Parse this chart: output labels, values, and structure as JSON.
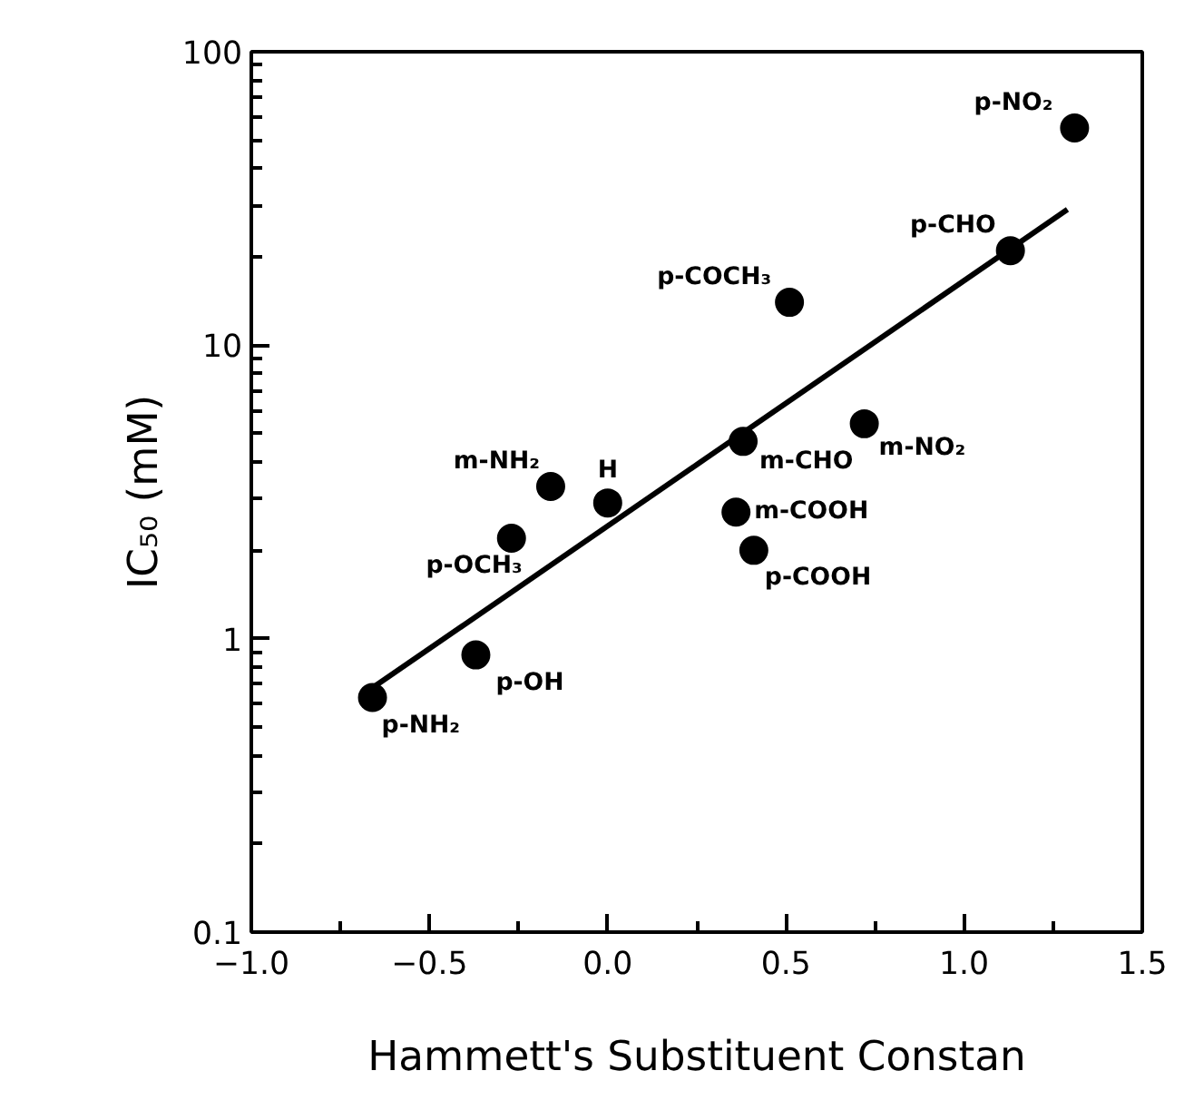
{
  "chart_data": {
    "type": "scatter",
    "xlabel": "Hammett's Substituent Constan",
    "ylabel": "IC₅₀ (mM)",
    "log": "y",
    "grid": false,
    "xlim": [
      -1.0,
      1.5
    ],
    "ylim": [
      0.1,
      100
    ],
    "xticks": [
      {
        "value": -1.0,
        "label": "−1.0"
      },
      {
        "value": -0.75,
        "label": null
      },
      {
        "value": -0.5,
        "label": "−0.5"
      },
      {
        "value": -0.25,
        "label": null
      },
      {
        "value": 0.0,
        "label": "0.0"
      },
      {
        "value": 0.25,
        "label": null
      },
      {
        "value": 0.5,
        "label": "0.5"
      },
      {
        "value": 0.75,
        "label": null
      },
      {
        "value": 1.0,
        "label": "1.0"
      },
      {
        "value": 1.25,
        "label": null
      },
      {
        "value": 1.5,
        "label": "1.5"
      }
    ],
    "yticks": [
      0.1,
      {
        "value": 0.2,
        "label": null
      },
      {
        "value": 0.3,
        "label": null
      },
      {
        "value": 0.4,
        "label": null
      },
      {
        "value": 0.5,
        "label": null
      },
      {
        "value": 0.6,
        "label": null
      },
      {
        "value": 0.7,
        "label": null
      },
      {
        "value": 0.8,
        "label": null
      },
      {
        "value": 0.9,
        "label": null
      },
      1,
      {
        "value": 2,
        "label": null
      },
      {
        "value": 3,
        "label": null
      },
      {
        "value": 4,
        "label": null
      },
      {
        "value": 5,
        "label": null
      },
      {
        "value": 6,
        "label": null
      },
      {
        "value": 7,
        "label": null
      },
      {
        "value": 8,
        "label": null
      },
      {
        "value": 9,
        "label": null
      },
      10,
      {
        "value": 20,
        "label": null
      },
      {
        "value": 30,
        "label": null
      },
      {
        "value": 40,
        "label": null
      },
      {
        "value": 50,
        "label": null
      },
      {
        "value": 60,
        "label": null
      },
      {
        "value": 70,
        "label": null
      },
      {
        "value": 80,
        "label": null
      },
      {
        "value": 90,
        "label": null
      },
      100
    ],
    "series": [
      {
        "marker": "circle",
        "color": "#000000",
        "x": [
          -0.66,
          -0.37,
          -0.27,
          -0.16,
          0.0,
          0.38,
          0.36,
          0.41,
          0.72,
          0.51,
          1.13,
          1.31
        ],
        "values": [
          0.63,
          0.88,
          2.2,
          3.3,
          2.9,
          4.7,
          2.7,
          2.0,
          5.4,
          14,
          21,
          55
        ]
      },
      {
        "type": "line",
        "color": "#000000",
        "x": [
          -0.66,
          1.29
        ],
        "values": [
          0.68,
          29
        ]
      }
    ],
    "annotations": [
      {
        "text": "p-NH₂",
        "x": -0.66,
        "y": 0.63
      },
      {
        "text": "p-OH",
        "x": -0.37,
        "y": 0.88
      },
      {
        "text": "p-OCH₃",
        "x": -0.27,
        "y": 2.2
      },
      {
        "text": "m-NH₂",
        "x": -0.16,
        "y": 3.3
      },
      {
        "text": "H",
        "x": 0.0,
        "y": 2.9
      },
      {
        "text": "m-CHO",
        "x": 0.38,
        "y": 4.7
      },
      {
        "text": "m-COOH",
        "x": 0.36,
        "y": 2.7
      },
      {
        "text": "p-COOH",
        "x": 0.41,
        "y": 2.0
      },
      {
        "text": "m-NO₂",
        "x": 0.72,
        "y": 5.4
      },
      {
        "text": "p-COCH₃",
        "x": 0.51,
        "y": 14
      },
      {
        "text": "p-CHO",
        "x": 1.13,
        "y": 21
      },
      {
        "text": "p-NO₂",
        "x": 1.31,
        "y": 55
      }
    ]
  }
}
